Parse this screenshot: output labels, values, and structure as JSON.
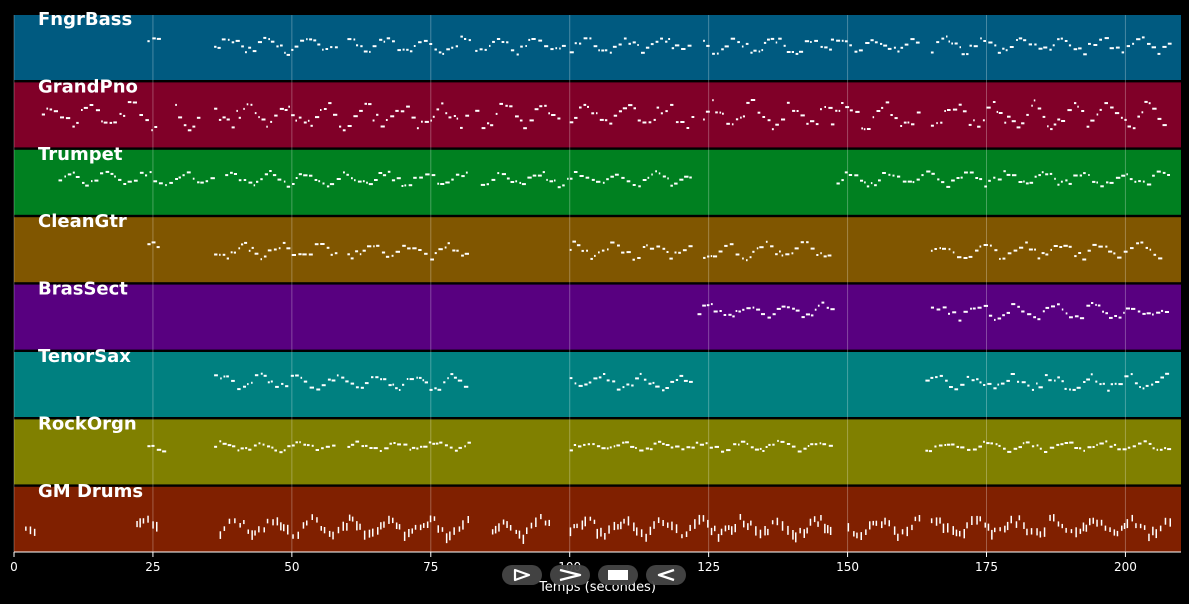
{
  "chart_data": {
    "type": "piano-roll",
    "xlabel": "Temps (secondes)",
    "xlim": [
      0,
      210
    ],
    "x_ticks": [
      0,
      25,
      50,
      75,
      100,
      125,
      150,
      175,
      200
    ],
    "grid": true,
    "tracks": [
      {
        "name": "FngrBass",
        "color": "#005a80",
        "segments": [
          [
            24,
            26
          ],
          [
            36,
            58
          ],
          [
            60,
            82
          ],
          [
            83,
            99
          ],
          [
            100,
            122
          ],
          [
            124,
            147
          ],
          [
            147,
            163
          ],
          [
            165,
            208
          ]
        ],
        "pitch_low": 0.3,
        "pitch_high": 0.75
      },
      {
        "name": "GrandPno",
        "color": "#800028",
        "segments": [
          [
            5,
            26
          ],
          [
            29,
            33
          ],
          [
            36,
            82
          ],
          [
            83,
            98
          ],
          [
            100,
            122
          ],
          [
            124,
            147
          ],
          [
            147,
            163
          ],
          [
            165,
            207
          ]
        ],
        "pitch_low": 0.1,
        "pitch_high": 0.85
      },
      {
        "name": "Trumpet",
        "color": "#008020",
        "segments": [
          [
            8,
            36
          ],
          [
            38,
            82
          ],
          [
            84,
            122
          ],
          [
            148,
            208
          ]
        ],
        "pitch_low": 0.35,
        "pitch_high": 0.75
      },
      {
        "name": "CleanGtr",
        "color": "#805600",
        "segments": [
          [
            24,
            26
          ],
          [
            36,
            58
          ],
          [
            60,
            82
          ],
          [
            100,
            122
          ],
          [
            124,
            147
          ],
          [
            165,
            207
          ]
        ],
        "pitch_low": 0.25,
        "pitch_high": 0.7
      },
      {
        "name": "BrasSect",
        "color": "#580080",
        "segments": [
          [
            123,
            147
          ],
          [
            165,
            208
          ]
        ],
        "pitch_low": 0.35,
        "pitch_high": 0.8
      },
      {
        "name": "TenorSax",
        "color": "#008080",
        "segments": [
          [
            36,
            82
          ],
          [
            100,
            122
          ],
          [
            164,
            208
          ]
        ],
        "pitch_low": 0.3,
        "pitch_high": 0.75
      },
      {
        "name": "RockOrgn",
        "color": "#808000",
        "segments": [
          [
            24,
            27
          ],
          [
            36,
            58
          ],
          [
            60,
            82
          ],
          [
            100,
            147
          ],
          [
            164,
            208
          ]
        ],
        "pitch_low": 0.45,
        "pitch_high": 0.72
      },
      {
        "name": "GM Drums",
        "color": "#802000",
        "segments": [
          [
            2,
            4
          ],
          [
            22,
            26
          ],
          [
            37,
            82
          ],
          [
            86,
            97
          ],
          [
            100,
            147
          ],
          [
            150,
            163
          ],
          [
            165,
            208
          ]
        ],
        "pitch_low": 0.15,
        "pitch_high": 0.65
      }
    ]
  },
  "controls": [
    {
      "name": "play-forward-button",
      "icon": "play-icon"
    },
    {
      "name": "fast-forward-button",
      "icon": "chevron-right-icon"
    },
    {
      "name": "stop-button",
      "icon": "stop-icon"
    },
    {
      "name": "rewind-button",
      "icon": "chevron-left-icon"
    }
  ]
}
